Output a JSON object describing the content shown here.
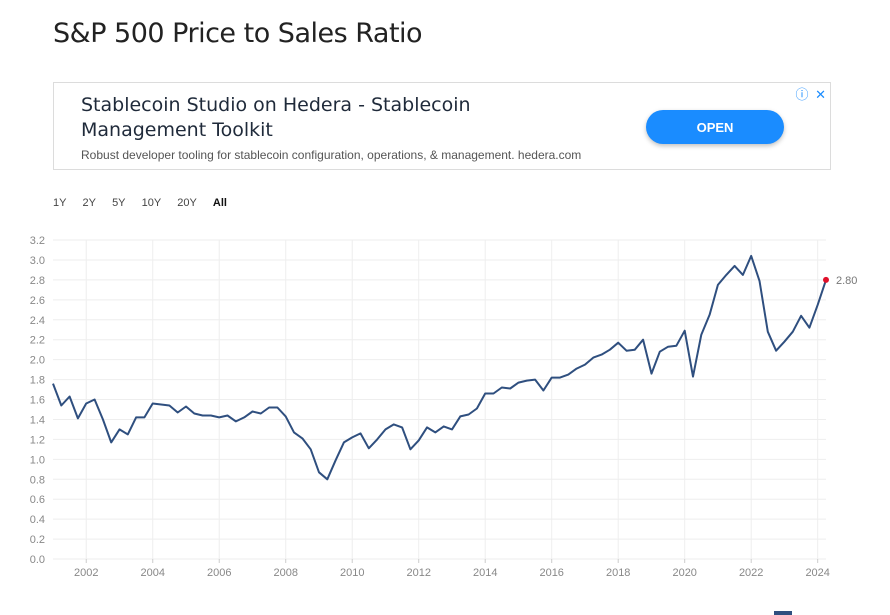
{
  "page": {
    "title": "S&P 500 Price to Sales Ratio"
  },
  "ad": {
    "headline": "Stablecoin Studio on Hedera - Stablecoin Management Toolkit",
    "description": "Robust developer tooling for stablecoin configuration, operations, & management. hedera.com",
    "button_label": "OPEN",
    "info_icon": "ⓘ",
    "close_icon": "✕"
  },
  "range_buttons": [
    "1Y",
    "2Y",
    "5Y",
    "10Y",
    "20Y",
    "All"
  ],
  "range_selected": "All",
  "colors": {
    "line": "#2f4f7f",
    "last_point": "#e0102a",
    "grid": "#eeeeee",
    "accent": "#1a8cff"
  },
  "chart_data": {
    "type": "line",
    "title": "",
    "xlabel": "",
    "ylabel": "",
    "xlim": [
      2001.0,
      2024.25
    ],
    "ylim": [
      0,
      3.2
    ],
    "grid": true,
    "x_ticks": [
      "2002",
      "2004",
      "2006",
      "2008",
      "2010",
      "2012",
      "2014",
      "2016",
      "2018",
      "2020",
      "2022",
      "2024"
    ],
    "y_ticks": [
      "0.0",
      "0.2",
      "0.4",
      "0.6",
      "0.8",
      "1.0",
      "1.2",
      "1.4",
      "1.6",
      "1.8",
      "2.0",
      "2.2",
      "2.4",
      "2.6",
      "2.8",
      "3.0",
      "3.2"
    ],
    "last_value_label": "2.80",
    "series": [
      {
        "x": [
          2001.0,
          2001.25,
          2001.5,
          2001.75,
          2002.0,
          2002.25,
          2002.5,
          2002.75,
          2003.0,
          2003.25,
          2003.5,
          2003.75,
          2004.0,
          2004.25,
          2004.5,
          2004.75,
          2005.0,
          2005.25,
          2005.5,
          2005.75,
          2006.0,
          2006.25,
          2006.5,
          2006.75,
          2007.0,
          2007.25,
          2007.5,
          2007.75,
          2008.0,
          2008.25,
          2008.5,
          2008.75,
          2009.0,
          2009.25,
          2009.5,
          2009.75,
          2010.0,
          2010.25,
          2010.5,
          2010.75,
          2011.0,
          2011.25,
          2011.5,
          2011.75,
          2012.0,
          2012.25,
          2012.5,
          2012.75,
          2013.0,
          2013.25,
          2013.5,
          2013.75,
          2014.0,
          2014.25,
          2014.5,
          2014.75,
          2015.0,
          2015.25,
          2015.5,
          2015.75,
          2016.0,
          2016.25,
          2016.5,
          2016.75,
          2017.0,
          2017.25,
          2017.5,
          2017.75,
          2018.0,
          2018.25,
          2018.5,
          2018.75,
          2019.0,
          2019.25,
          2019.5,
          2019.75,
          2020.0,
          2020.25,
          2020.5,
          2020.75,
          2021.0,
          2021.25,
          2021.5,
          2021.75,
          2022.0,
          2022.25,
          2022.5,
          2022.75,
          2023.0,
          2023.25,
          2023.5,
          2023.75,
          2024.0,
          2024.25
        ],
        "y": [
          1.76,
          1.54,
          1.63,
          1.41,
          1.56,
          1.6,
          1.4,
          1.17,
          1.3,
          1.25,
          1.42,
          1.42,
          1.56,
          1.55,
          1.54,
          1.47,
          1.53,
          1.46,
          1.44,
          1.44,
          1.42,
          1.44,
          1.38,
          1.42,
          1.48,
          1.46,
          1.52,
          1.52,
          1.43,
          1.27,
          1.21,
          1.1,
          0.87,
          0.8,
          0.99,
          1.17,
          1.22,
          1.26,
          1.11,
          1.2,
          1.3,
          1.35,
          1.32,
          1.1,
          1.19,
          1.32,
          1.27,
          1.33,
          1.3,
          1.43,
          1.45,
          1.51,
          1.66,
          1.66,
          1.72,
          1.71,
          1.77,
          1.79,
          1.8,
          1.69,
          1.82,
          1.82,
          1.85,
          1.91,
          1.95,
          2.02,
          2.05,
          2.1,
          2.17,
          2.09,
          2.1,
          2.2,
          1.86,
          2.08,
          2.13,
          2.14,
          2.29,
          1.83,
          2.25,
          2.45,
          2.75,
          2.85,
          2.94,
          2.85,
          3.04,
          2.79,
          2.28,
          2.09,
          2.18,
          2.28,
          2.44,
          2.32,
          2.55,
          2.8
        ]
      }
    ]
  }
}
